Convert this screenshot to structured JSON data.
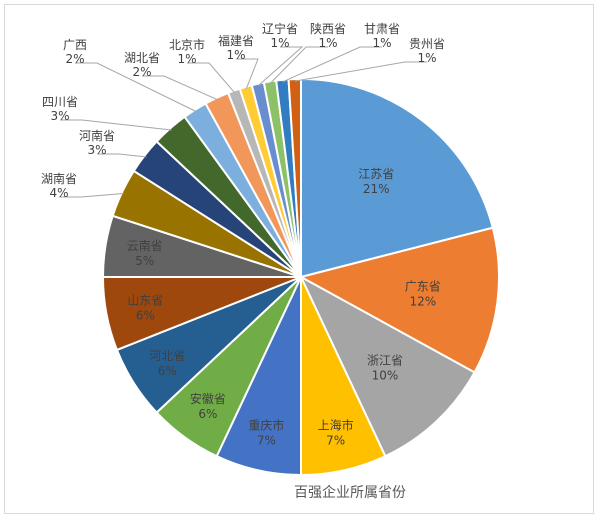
{
  "chart_data": {
    "type": "pie",
    "title": "百强企业所属省份",
    "unit": "%",
    "slices": [
      {
        "name": "江苏省",
        "value": 21,
        "label": "21%",
        "color": "#5b9bd5"
      },
      {
        "name": "广东省",
        "value": 12,
        "label": "12%",
        "color": "#ed7d31"
      },
      {
        "name": "浙江省",
        "value": 10,
        "label": "10%",
        "color": "#a5a5a5"
      },
      {
        "name": "上海市",
        "value": 7,
        "label": "7%",
        "color": "#ffc000"
      },
      {
        "name": "重庆市",
        "value": 7,
        "label": "7%",
        "color": "#4472c4"
      },
      {
        "name": "安徽省",
        "value": 6,
        "label": "6%",
        "color": "#70ad47"
      },
      {
        "name": "河北省",
        "value": 6,
        "label": "6%",
        "color": "#255e91"
      },
      {
        "name": "山东省",
        "value": 6,
        "label": "6%",
        "color": "#9e480e"
      },
      {
        "name": "云南省",
        "value": 5,
        "label": "5%",
        "color": "#636363"
      },
      {
        "name": "湖南省",
        "value": 4,
        "label": "4%",
        "color": "#997300"
      },
      {
        "name": "河南省",
        "value": 3,
        "label": "3%",
        "color": "#264478"
      },
      {
        "name": "四川省",
        "value": 3,
        "label": "3%",
        "color": "#43682b"
      },
      {
        "name": "广西",
        "value": 2,
        "label": "2%",
        "color": "#7cafdd"
      },
      {
        "name": "湖北省",
        "value": 2,
        "label": "2%",
        "color": "#f1975a"
      },
      {
        "name": "北京市",
        "value": 1,
        "label": "1%",
        "color": "#b7b7b7"
      },
      {
        "name": "福建省",
        "value": 1,
        "label": "1%",
        "color": "#ffcd33"
      },
      {
        "name": "辽宁省",
        "value": 1,
        "label": "1%",
        "color": "#698ed0"
      },
      {
        "name": "陕西省",
        "value": 1,
        "label": "1%",
        "color": "#8cc168"
      },
      {
        "name": "甘肃省",
        "value": 1,
        "label": "1%",
        "color": "#327dc2"
      },
      {
        "name": "贵州省",
        "value": 1,
        "label": "1%",
        "color": "#d26012"
      }
    ]
  }
}
